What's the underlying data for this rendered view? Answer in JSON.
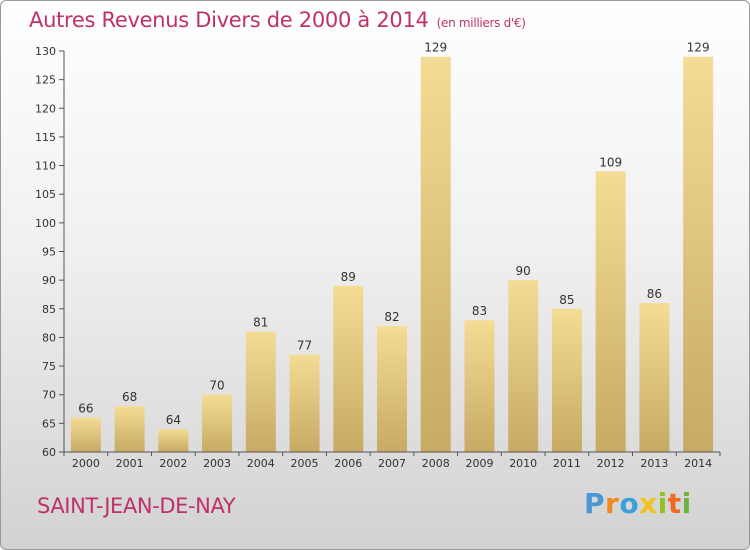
{
  "title": {
    "main": "Autres Revenus Divers de 2000 à 2014",
    "unit": "(en milliers d'€)"
  },
  "location": "SAINT-JEAN-DE-NAY",
  "logo": {
    "text": "Proxiti",
    "letters": [
      "P",
      "r",
      "o",
      "x",
      "i",
      "t",
      "i"
    ]
  },
  "colors": {
    "title": "#c0316a",
    "bar_top": "#f4dc95",
    "bar_bottom": "#c7aa63",
    "axis": "#555555"
  },
  "chart_data": {
    "type": "bar",
    "title": "Autres Revenus Divers de 2000 à 2014",
    "categories": [
      "2000",
      "2001",
      "2002",
      "2003",
      "2004",
      "2005",
      "2006",
      "2007",
      "2008",
      "2009",
      "2010",
      "2011",
      "2012",
      "2013",
      "2014"
    ],
    "values": [
      66,
      68,
      64,
      70,
      81,
      77,
      89,
      82,
      129,
      83,
      90,
      85,
      109,
      86,
      129
    ],
    "ylim": [
      60,
      130
    ],
    "yticks": [
      60,
      65,
      70,
      75,
      80,
      85,
      90,
      95,
      100,
      105,
      110,
      115,
      120,
      125,
      130
    ],
    "xlabel": "",
    "ylabel": "",
    "grid": false,
    "data_labels": true
  }
}
